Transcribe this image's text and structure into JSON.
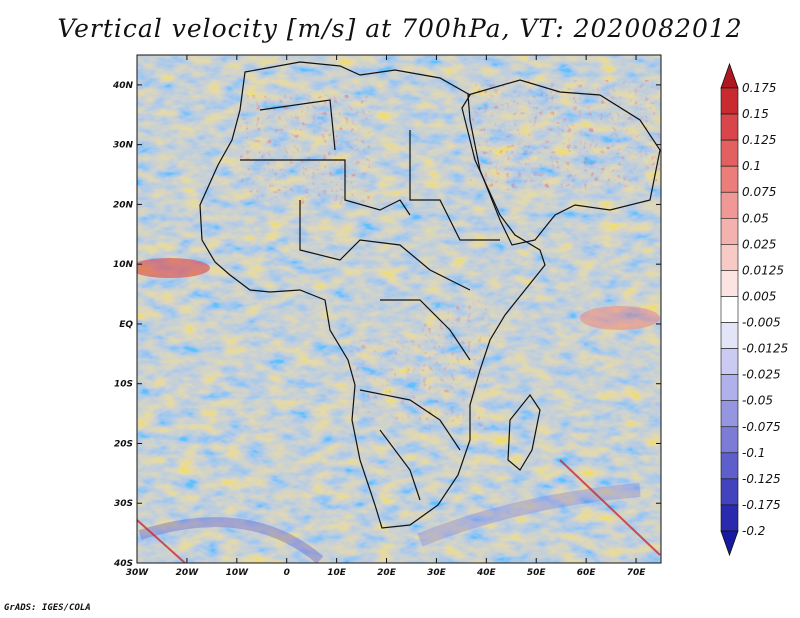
{
  "title": "Vertical velocity [m/s] at 700hPa, VT: 2020082012",
  "footer": "GrADS: IGES/COLA",
  "map": {
    "lon_range": [
      -30,
      75
    ],
    "lat_range": [
      -40,
      45
    ],
    "x_ticks": [
      {
        "lon": -30,
        "label": "30W"
      },
      {
        "lon": -20,
        "label": "20W"
      },
      {
        "lon": -10,
        "label": "10W"
      },
      {
        "lon": 0,
        "label": "0"
      },
      {
        "lon": 10,
        "label": "10E"
      },
      {
        "lon": 20,
        "label": "20E"
      },
      {
        "lon": 30,
        "label": "30E"
      },
      {
        "lon": 40,
        "label": "40E"
      },
      {
        "lon": 50,
        "label": "50E"
      },
      {
        "lon": 60,
        "label": "60E"
      },
      {
        "lon": 70,
        "label": "70E"
      }
    ],
    "y_ticks": [
      {
        "lat": 40,
        "label": "40N"
      },
      {
        "lat": 30,
        "label": "30N"
      },
      {
        "lat": 20,
        "label": "20N"
      },
      {
        "lat": 10,
        "label": "10N"
      },
      {
        "lat": 0,
        "label": "EQ"
      },
      {
        "lat": -10,
        "label": "10S"
      },
      {
        "lat": -20,
        "label": "20S"
      },
      {
        "lat": -30,
        "label": "30S"
      },
      {
        "lat": -40,
        "label": "40S"
      }
    ]
  },
  "colorbar": {
    "labels": [
      "0.175",
      "0.15",
      "0.125",
      "0.1",
      "0.075",
      "0.05",
      "0.025",
      "0.0125",
      "0.005",
      "-0.005",
      "-0.0125",
      "-0.025",
      "-0.05",
      "-0.075",
      "-0.1",
      "-0.125",
      "-0.175",
      "-0.2"
    ],
    "colors": [
      "#b01820",
      "#c82a30",
      "#d8454a",
      "#e2605f",
      "#eb7d7a",
      "#f09895",
      "#f4b2ae",
      "#f8cac6",
      "#fce4e2",
      "#ffffff",
      "#e4e4f8",
      "#cacaf2",
      "#b0b0ea",
      "#9696e0",
      "#7c7cd6",
      "#5f5fcc",
      "#4343be",
      "#2a2aae",
      "#1818a0"
    ]
  }
}
